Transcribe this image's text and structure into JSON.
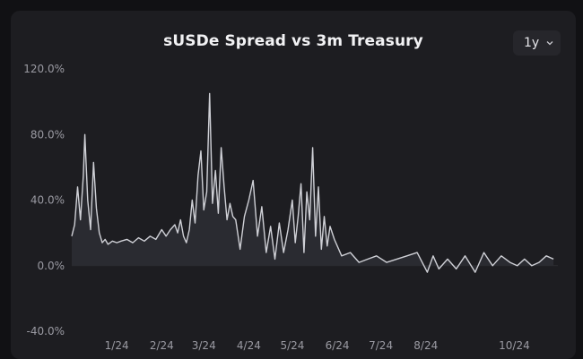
{
  "title": "sUSDe Spread vs 3m Treasury",
  "range_selector": {
    "selected": "1y",
    "icon": "chevron-down-icon"
  },
  "colors": {
    "background": "#1d1d21",
    "line": "#cfd0d6",
    "area": "#2a2b31",
    "grid": "#2c2c31",
    "text": "#9a9aa2"
  },
  "chart_data": {
    "type": "area",
    "title": "sUSDe Spread vs 3m Treasury",
    "xlabel": "",
    "ylabel": "",
    "y_unit": "%",
    "ylim": [
      -40,
      120
    ],
    "yticks": [
      -40,
      0,
      40,
      80,
      120
    ],
    "ytick_labels": [
      "-40.0%",
      "0.0%",
      "40.0%",
      "80.0%",
      "120.0%"
    ],
    "xlim": [
      "2023-12-01",
      "2024-10-31"
    ],
    "xticks": [
      "2024-01-01",
      "2024-02-01",
      "2024-03-01",
      "2024-04-01",
      "2024-05-01",
      "2024-06-01",
      "2024-07-01",
      "2024-08-01",
      "2024-10-01"
    ],
    "xtick_labels": [
      "1/24",
      "2/24",
      "3/24",
      "4/24",
      "5/24",
      "6/24",
      "7/24",
      "8/24",
      "10/24"
    ],
    "grid": false,
    "legend": "none",
    "series": [
      {
        "x": [
          "2023-12-01",
          "2023-12-03",
          "2023-12-05",
          "2023-12-07",
          "2023-12-09",
          "2023-12-10",
          "2023-12-12",
          "2023-12-14",
          "2023-12-16",
          "2023-12-18",
          "2023-12-20",
          "2023-12-22",
          "2023-12-24",
          "2023-12-26",
          "2023-12-29",
          "2024-01-01",
          "2024-01-04",
          "2024-01-08",
          "2024-01-12",
          "2024-01-16",
          "2024-01-20",
          "2024-01-24",
          "2024-01-28",
          "2024-02-01",
          "2024-02-04",
          "2024-02-07",
          "2024-02-10",
          "2024-02-12",
          "2024-02-14",
          "2024-02-16",
          "2024-02-18",
          "2024-02-20",
          "2024-02-22",
          "2024-02-24",
          "2024-02-26",
          "2024-02-28",
          "2024-03-01",
          "2024-03-03",
          "2024-03-05",
          "2024-03-07",
          "2024-03-09",
          "2024-03-11",
          "2024-03-13",
          "2024-03-15",
          "2024-03-17",
          "2024-03-19",
          "2024-03-21",
          "2024-03-23",
          "2024-03-26",
          "2024-03-29",
          "2024-04-01",
          "2024-04-04",
          "2024-04-07",
          "2024-04-10",
          "2024-04-13",
          "2024-04-16",
          "2024-04-19",
          "2024-04-22",
          "2024-04-25",
          "2024-04-28",
          "2024-05-01",
          "2024-05-03",
          "2024-05-05",
          "2024-05-07",
          "2024-05-09",
          "2024-05-11",
          "2024-05-13",
          "2024-05-15",
          "2024-05-17",
          "2024-05-19",
          "2024-05-21",
          "2024-05-23",
          "2024-05-25",
          "2024-05-27",
          "2024-05-30",
          "2024-06-04",
          "2024-06-10",
          "2024-06-16",
          "2024-06-22",
          "2024-06-28",
          "2024-07-05",
          "2024-07-12",
          "2024-07-19",
          "2024-07-26",
          "2024-08-02",
          "2024-08-06",
          "2024-08-10",
          "2024-08-16",
          "2024-08-22",
          "2024-08-28",
          "2024-09-04",
          "2024-09-10",
          "2024-09-16",
          "2024-09-22",
          "2024-09-28",
          "2024-10-03",
          "2024-10-08",
          "2024-10-13",
          "2024-10-18",
          "2024-10-23",
          "2024-10-28"
        ],
        "values": [
          18,
          25,
          48,
          28,
          55,
          80,
          40,
          22,
          63,
          35,
          20,
          14,
          16,
          13,
          15,
          14,
          15,
          16,
          14,
          17,
          15,
          18,
          16,
          22,
          18,
          22,
          25,
          20,
          28,
          18,
          14,
          22,
          40,
          26,
          55,
          70,
          34,
          45,
          105,
          38,
          58,
          32,
          72,
          48,
          28,
          38,
          30,
          28,
          10,
          30,
          40,
          52,
          18,
          36,
          8,
          24,
          4,
          26,
          8,
          22,
          40,
          14,
          30,
          50,
          8,
          45,
          28,
          72,
          18,
          48,
          10,
          30,
          12,
          24,
          16,
          6,
          8,
          2,
          4,
          6,
          2,
          4,
          6,
          8,
          -4,
          6,
          -2,
          4,
          -2,
          6,
          -4,
          8,
          0,
          6,
          2,
          0,
          4,
          0,
          2,
          6,
          4
        ]
      }
    ]
  }
}
